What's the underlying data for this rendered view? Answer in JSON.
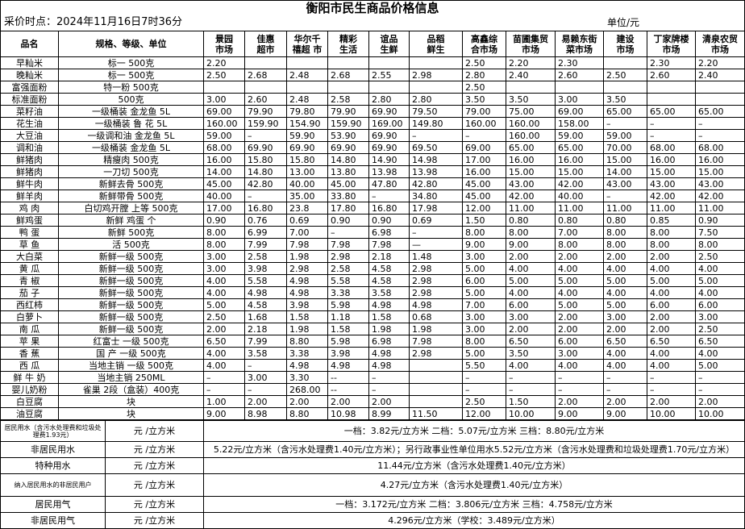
{
  "header": {
    "title": "衡阳市民生商品价格信息",
    "time": "采价时点：2024年11月16日7时36分",
    "unit": "单位/元"
  },
  "table": {
    "columns": [
      "品名",
      "规格、等级、单位",
      "景园\n市场",
      "佳惠\n超市",
      "华尔千\n禧超 市",
      "精彩\n生活",
      "谊品\n生鲜",
      "品稻\n鲜生",
      "高鑫综\n合市场",
      "苗圃集贸\n市场",
      "易赖东街\n菜市场",
      "建设\n市场",
      "丁家牌楼\n市场",
      "清泉农贸\n市场"
    ],
    "rows": [
      [
        "早籼米",
        "标一 500克",
        "2.20",
        null,
        null,
        null,
        null,
        null,
        "2.50",
        "2.20",
        "2.30",
        null,
        "2.30",
        "2.20"
      ],
      [
        "晚籼米",
        "标一 500克",
        "2.50",
        "2.68",
        "2.48",
        "2.68",
        "2.55",
        "2.98",
        "2.80",
        "2.40",
        "2.60",
        "2.50",
        "2.60",
        "2.40"
      ],
      [
        "富强面粉",
        "特一粉 500克",
        null,
        null,
        null,
        null,
        null,
        null,
        "2.50",
        null,
        null,
        null,
        null,
        null
      ],
      [
        "标准面粉",
        "500克",
        "3.00",
        "2.60",
        "2.48",
        "2.58",
        "2.80",
        "2.80",
        "3.50",
        "3.50",
        "3.00",
        "3.50",
        null,
        null
      ],
      [
        "菜籽油",
        "一级桶装 金龙鱼 5L",
        "69.00",
        "79.90",
        "79.80",
        "79.90",
        "69.90",
        "79.50",
        "79.00",
        "75.00",
        "69.00",
        "65.00",
        "65.00",
        "65.00"
      ],
      [
        "花生油",
        "一级桶装 鲁 花 5L",
        "160.00",
        "159.90",
        "154.90",
        "159.90",
        "169.00",
        "149.80",
        "160.00",
        "160.00",
        "158.00",
        "–",
        "–",
        "–"
      ],
      [
        "大豆油",
        "一级调和油 金龙鱼 5L",
        "59.00",
        "–",
        "59.90",
        "53.90",
        "69.90",
        "–",
        "–",
        "160.00",
        "59.00",
        "59.00",
        "–",
        "–"
      ],
      [
        "调和油",
        "一级桶装 金龙鱼 5L",
        "68.00",
        "69.90",
        "69.90",
        "69.90",
        "69.90",
        "69.50",
        "69.00",
        "65.00",
        "65.00",
        "70.00",
        "68.00",
        "68.00"
      ],
      [
        "鲜猪肉",
        "精瘦肉 500克",
        "16.00",
        "15.80",
        "15.80",
        "14.80",
        "14.90",
        "14.98",
        "17.00",
        "16.00",
        "16.00",
        "15.00",
        "16.00",
        "16.00"
      ],
      [
        "鲜猪肉",
        "一刀切 500克",
        "14.00",
        "14.80",
        "13.00",
        "13.80",
        "13.98",
        "13.98",
        "16.00",
        "15.00",
        "15.00",
        "14.00",
        "15.00",
        "15.00"
      ],
      [
        "鲜牛肉",
        "新鲜去骨 500克",
        "45.00",
        "42.80",
        "40.00",
        "45.00",
        "47.80",
        "42.80",
        "45.00",
        "43.00",
        "42.00",
        "43.00",
        "43.00",
        "43.00"
      ],
      [
        "鲜羊肉",
        "新鲜带骨 500克",
        "40.00",
        "–",
        "35.00",
        "33.80",
        "–",
        "34.80",
        "45.00",
        "42.00",
        "40.00",
        "–",
        "42.00",
        "42.00"
      ],
      [
        "鸡 肉",
        "白切鸡开膛 上等 500克",
        "17.00",
        "16.80",
        "23.8",
        "17.80",
        "16.80",
        "17.98",
        "12.00",
        "11.00",
        "11.00",
        "11.00",
        "11.00",
        "11.00"
      ],
      [
        "鲜鸡蛋",
        "新鲜 鸡蛋 个",
        "0.90",
        "0.76",
        "0.69",
        "0.90",
        "0.90",
        "0.69",
        "1.50",
        "0.80",
        "0.80",
        "0.80",
        "0.85",
        "0.90"
      ],
      [
        "鸭 蛋",
        "新鲜 500克",
        "8.00",
        "6.99",
        "7.00",
        "–",
        "6.98",
        "–",
        "8.00",
        "8.00",
        "7.00",
        "8.00",
        "8.00",
        "7.50"
      ],
      [
        "草 鱼",
        "活 500克",
        "8.00",
        "7.99",
        "7.98",
        "7.98",
        "7.98",
        "—",
        "9.00",
        "9.00",
        "8.00",
        "8.00",
        "8.00",
        "8.00"
      ],
      [
        "大白菜",
        "新鲜一级 500克",
        "3.00",
        "2.58",
        "1.98",
        "2.98",
        "2.18",
        "1.48",
        "3.00",
        "2.00",
        "2.00",
        "2.00",
        "2.00",
        "2.50"
      ],
      [
        "黄 瓜",
        "新鲜一级 500克",
        "3.00",
        "3.98",
        "2.98",
        "2.58",
        "4.58",
        "2.98",
        "5.00",
        "4.00",
        "4.00",
        "4.00",
        "4.00",
        "4.00"
      ],
      [
        "青 椒",
        "新鲜一级 500克",
        "4.00",
        "5.58",
        "4.98",
        "5.58",
        "4.58",
        "2.98",
        "6.00",
        "5.00",
        "5.00",
        "5.00",
        "5.00",
        "5.00"
      ],
      [
        "茄 子",
        "新鲜一级 500克",
        "4.00",
        "4.98",
        "4.98",
        "3.38",
        "3.58",
        "2.98",
        "5.00",
        "4.00",
        "4.00",
        "4.00",
        "4.00",
        "4.00"
      ],
      [
        "西红柿",
        "新鲜一级 500克",
        "5.00",
        "4.58",
        "3.98",
        "5.98",
        "4.98",
        "4.98",
        "7.00",
        "6.00",
        "5.00",
        "5.00",
        "6.00",
        "6.00"
      ],
      [
        "白萝卜",
        "新鲜一级 500克",
        "2.50",
        "1.68",
        "1.58",
        "1.18",
        "1.58",
        "0.68",
        "3.00",
        "3.00",
        "2.00",
        "3.00",
        "2.00",
        "3.00"
      ],
      [
        "南 瓜",
        "新鲜一级 500克",
        "2.00",
        "2.18",
        "1.98",
        "1.58",
        "1.98",
        "1.98",
        "3.00",
        "2.00",
        "2.00",
        "2.00",
        "2.00",
        "2.50"
      ],
      [
        "苹 果",
        "红富士 一级 500克",
        "6.50",
        "7.99",
        "8.80",
        "5.98",
        "6.98",
        "7.98",
        "8.00",
        "6.50",
        "6.00",
        "6.50",
        "6.50",
        "6.50"
      ],
      [
        "香 蕉",
        "国 产 一级 500克",
        "4.00",
        "3.58",
        "3.38",
        "3.98",
        "4.98",
        "2.98",
        "5.00",
        "3.50",
        "3.00",
        "4.00",
        "4.00",
        "4.00"
      ],
      [
        "西 瓜",
        "当地主销 一级 500克",
        "4.00",
        "–",
        "4.98",
        "4.98",
        "4.98",
        null,
        "5.50",
        "4.00",
        "4.00",
        "4.00",
        "4.00",
        "5.00"
      ],
      [
        "鲜 牛 奶",
        "当地主销 250ML",
        "–",
        "3.00",
        "3.30",
        "--",
        "–",
        null,
        "–",
        "–",
        "–",
        "–",
        "–",
        "–"
      ],
      [
        "婴儿奶粉",
        "雀巢 2段（盒装）400克",
        "–",
        "–",
        "268.00",
        "--",
        "–",
        null,
        "–",
        "–",
        "–",
        "–",
        "–",
        "–"
      ],
      [
        "白豆腐",
        "块",
        "1.00",
        "2.00",
        "2.00",
        "2.00",
        "2.00",
        null,
        "2.50",
        "1.50",
        "2.00",
        "2.00",
        "2.00",
        "2.00"
      ],
      [
        "油豆腐",
        "块",
        "9.00",
        "8.98",
        "8.80",
        "10.98",
        "8.99",
        "11.50",
        "12.00",
        "10.00",
        "9.00",
        "9.00",
        "10.00",
        "10.00"
      ]
    ]
  },
  "utilities": {
    "rows": [
      [
        "居民用水（含污水处理费和垃圾处理费1.93元）",
        "元 /立方米",
        "一档：3.82元/立方米    二档：5.07元/立方米    三档：8.80元/立方米"
      ],
      [
        "非居民用水",
        "元 /立方米",
        "5.22元/立方米（含污水处理费1.40元/立方米）；另行政事业性单位用水5.52元/立方米（含污水处理费和垃圾处理费1.70元/立方米）"
      ],
      [
        "特种用水",
        "元 /立方米",
        "11.44元/立方米（含污水处理费1.40元/立方米）"
      ],
      [
        "纳入居民用水的非居民用户",
        "元 /立方米",
        "4.27元/立方米（含污水处理费1.40元/立方米）"
      ],
      [
        "居民用气",
        "元 /立方米",
        "一档：3.172元/立方米    二档：3.806元/立方米    三档：4.758元/立方米"
      ],
      [
        "非居民用气",
        "元 /立方米",
        "4.296元/立方米（学校：3.489元/立方米）"
      ]
    ]
  }
}
